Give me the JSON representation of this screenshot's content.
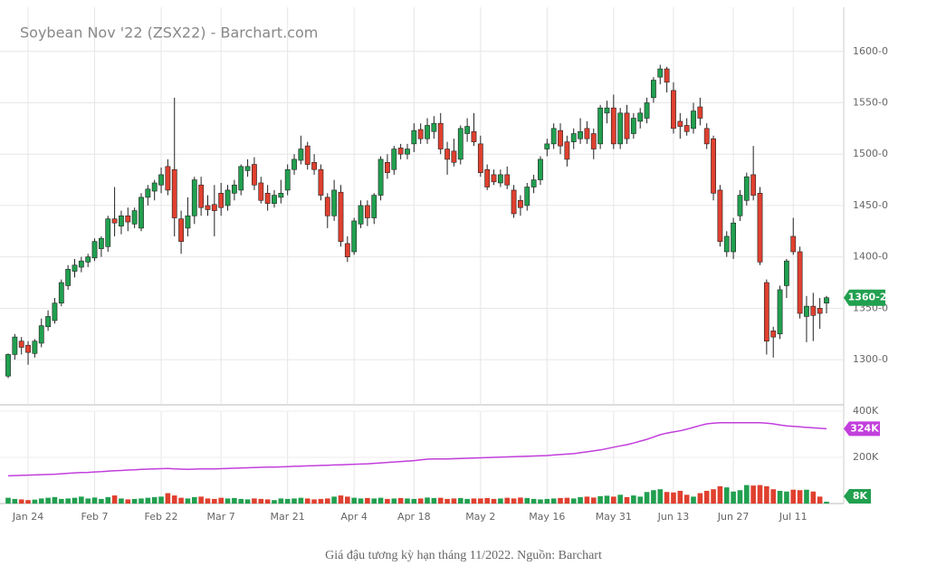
{
  "caption": "Giá đậu tương kỳ hạn tháng 11/2022. Nguồn: Barchart",
  "chart_data": [
    {
      "type": "candlestick",
      "title": "Soybean Nov '22 (ZSX22) - Barchart.com",
      "categories": [
        null,
        null,
        null,
        "Jan 24",
        null,
        null,
        null,
        null,
        null,
        null,
        null,
        null,
        null,
        "Feb 7",
        null,
        null,
        null,
        null,
        null,
        null,
        null,
        null,
        null,
        "Feb 22",
        null,
        null,
        null,
        null,
        null,
        null,
        null,
        null,
        "Mar 7",
        null,
        null,
        null,
        null,
        null,
        null,
        null,
        null,
        null,
        "Mar 21",
        null,
        null,
        null,
        null,
        null,
        null,
        null,
        null,
        null,
        "Apr 4",
        null,
        null,
        null,
        null,
        null,
        null,
        null,
        null,
        "Apr 18",
        null,
        null,
        null,
        null,
        null,
        null,
        null,
        null,
        null,
        "May 2",
        null,
        null,
        null,
        null,
        null,
        null,
        null,
        null,
        null,
        "May 16",
        null,
        null,
        null,
        null,
        null,
        null,
        null,
        null,
        null,
        "May 31",
        null,
        null,
        null,
        null,
        null,
        null,
        null,
        null,
        "Jun 13",
        null,
        null,
        null,
        null,
        null,
        null,
        null,
        null,
        "Jun 27",
        null,
        null,
        null,
        null,
        null,
        null,
        null,
        null,
        "Jul 11",
        null,
        null,
        null,
        null,
        null
      ],
      "ohlc": [
        [
          1284,
          1306,
          1282,
          1305
        ],
        [
          1305,
          1325,
          1300,
          1322
        ],
        [
          1318,
          1322,
          1305,
          1312
        ],
        [
          1314,
          1318,
          1295,
          1307
        ],
        [
          1306,
          1320,
          1302,
          1318
        ],
        [
          1316,
          1340,
          1312,
          1333
        ],
        [
          1332,
          1348,
          1328,
          1342
        ],
        [
          1338,
          1360,
          1335,
          1355
        ],
        [
          1355,
          1378,
          1352,
          1375
        ],
        [
          1372,
          1392,
          1368,
          1388
        ],
        [
          1386,
          1398,
          1380,
          1392
        ],
        [
          1390,
          1400,
          1385,
          1396
        ],
        [
          1395,
          1403,
          1390,
          1400
        ],
        [
          1399,
          1418,
          1396,
          1415
        ],
        [
          1408,
          1420,
          1400,
          1418
        ],
        [
          1410,
          1440,
          1405,
          1437
        ],
        [
          1437,
          1468,
          1420,
          1433
        ],
        [
          1430,
          1445,
          1422,
          1440
        ],
        [
          1440,
          1448,
          1425,
          1434
        ],
        [
          1432,
          1448,
          1428,
          1445
        ],
        [
          1428,
          1462,
          1425,
          1458
        ],
        [
          1458,
          1470,
          1450,
          1466
        ],
        [
          1464,
          1475,
          1455,
          1472
        ],
        [
          1470,
          1487,
          1462,
          1480
        ],
        [
          1488,
          1495,
          1460,
          1465
        ],
        [
          1485,
          1555,
          1420,
          1438
        ],
        [
          1437,
          1445,
          1403,
          1415
        ],
        [
          1428,
          1458,
          1420,
          1440
        ],
        [
          1440,
          1478,
          1432,
          1475
        ],
        [
          1470,
          1478,
          1440,
          1448
        ],
        [
          1450,
          1460,
          1440,
          1446
        ],
        [
          1451,
          1470,
          1420,
          1445
        ],
        [
          1462,
          1472,
          1440,
          1448
        ],
        [
          1450,
          1470,
          1445,
          1465
        ],
        [
          1462,
          1475,
          1455,
          1470
        ],
        [
          1465,
          1490,
          1460,
          1488
        ],
        [
          1484,
          1495,
          1478,
          1488
        ],
        [
          1490,
          1497,
          1465,
          1470
        ],
        [
          1472,
          1478,
          1452,
          1455
        ],
        [
          1462,
          1470,
          1445,
          1452
        ],
        [
          1452,
          1465,
          1448,
          1460
        ],
        [
          1458,
          1475,
          1452,
          1462
        ],
        [
          1465,
          1490,
          1460,
          1485
        ],
        [
          1485,
          1500,
          1480,
          1495
        ],
        [
          1494,
          1518,
          1490,
          1505
        ],
        [
          1508,
          1512,
          1485,
          1490
        ],
        [
          1492,
          1500,
          1480,
          1485
        ],
        [
          1485,
          1490,
          1455,
          1460
        ],
        [
          1458,
          1462,
          1428,
          1440
        ],
        [
          1440,
          1475,
          1435,
          1465
        ],
        [
          1463,
          1470,
          1410,
          1415
        ],
        [
          1413,
          1420,
          1395,
          1400
        ],
        [
          1405,
          1438,
          1402,
          1435
        ],
        [
          1432,
          1455,
          1428,
          1450
        ],
        [
          1450,
          1455,
          1430,
          1438
        ],
        [
          1438,
          1462,
          1432,
          1460
        ],
        [
          1460,
          1498,
          1455,
          1495
        ],
        [
          1492,
          1500,
          1476,
          1482
        ],
        [
          1485,
          1508,
          1480,
          1505
        ],
        [
          1506,
          1510,
          1495,
          1500
        ],
        [
          1500,
          1510,
          1495,
          1505
        ],
        [
          1510,
          1530,
          1502,
          1523
        ],
        [
          1524,
          1530,
          1510,
          1515
        ],
        [
          1515,
          1535,
          1510,
          1528
        ],
        [
          1522,
          1537,
          1515,
          1530
        ],
        [
          1530,
          1540,
          1500,
          1505
        ],
        [
          1505,
          1512,
          1480,
          1495
        ],
        [
          1503,
          1515,
          1488,
          1492
        ],
        [
          1495,
          1528,
          1490,
          1525
        ],
        [
          1520,
          1535,
          1512,
          1527
        ],
        [
          1522,
          1540,
          1508,
          1512
        ],
        [
          1510,
          1518,
          1478,
          1482
        ],
        [
          1485,
          1490,
          1465,
          1468
        ],
        [
          1480,
          1485,
          1470,
          1473
        ],
        [
          1472,
          1485,
          1468,
          1480
        ],
        [
          1480,
          1488,
          1466,
          1470
        ],
        [
          1465,
          1470,
          1438,
          1442
        ],
        [
          1455,
          1460,
          1440,
          1448
        ],
        [
          1450,
          1472,
          1445,
          1468
        ],
        [
          1468,
          1480,
          1462,
          1475
        ],
        [
          1475,
          1498,
          1470,
          1495
        ],
        [
          1505,
          1515,
          1498,
          1510
        ],
        [
          1510,
          1530,
          1505,
          1525
        ],
        [
          1523,
          1530,
          1500,
          1508
        ],
        [
          1512,
          1518,
          1488,
          1495
        ],
        [
          1512,
          1525,
          1505,
          1520
        ],
        [
          1515,
          1535,
          1510,
          1522
        ],
        [
          1525,
          1532,
          1510,
          1515
        ],
        [
          1520,
          1525,
          1495,
          1505
        ],
        [
          1510,
          1548,
          1505,
          1545
        ],
        [
          1540,
          1552,
          1530,
          1545
        ],
        [
          1545,
          1558,
          1505,
          1510
        ],
        [
          1510,
          1545,
          1505,
          1540
        ],
        [
          1540,
          1548,
          1510,
          1515
        ],
        [
          1520,
          1540,
          1515,
          1535
        ],
        [
          1532,
          1545,
          1525,
          1540
        ],
        [
          1535,
          1555,
          1530,
          1550
        ],
        [
          1555,
          1575,
          1550,
          1572
        ],
        [
          1575,
          1587,
          1568,
          1583
        ],
        [
          1583,
          1585,
          1560,
          1570
        ],
        [
          1562,
          1570,
          1520,
          1525
        ],
        [
          1532,
          1540,
          1515,
          1527
        ],
        [
          1528,
          1535,
          1518,
          1522
        ],
        [
          1525,
          1550,
          1520,
          1542
        ],
        [
          1546,
          1555,
          1528,
          1535
        ],
        [
          1525,
          1530,
          1505,
          1510
        ],
        [
          1515,
          1518,
          1455,
          1462
        ],
        [
          1465,
          1470,
          1410,
          1415
        ],
        [
          1405,
          1425,
          1400,
          1420
        ],
        [
          1405,
          1438,
          1398,
          1433
        ],
        [
          1440,
          1465,
          1435,
          1460
        ],
        [
          1455,
          1482,
          1450,
          1478
        ],
        [
          1480,
          1508,
          1455,
          1460
        ],
        [
          1462,
          1468,
          1392,
          1395
        ],
        [
          1375,
          1378,
          1305,
          1318
        ],
        [
          1328,
          1332,
          1302,
          1322
        ],
        [
          1325,
          1372,
          1320,
          1368
        ],
        [
          1372,
          1398,
          1360,
          1396
        ],
        [
          1420,
          1438,
          1402,
          1405
        ],
        [
          1405,
          1410,
          1340,
          1345
        ],
        [
          1342,
          1362,
          1317,
          1352
        ],
        [
          1352,
          1365,
          1318,
          1343
        ],
        [
          1350,
          1360,
          1330,
          1345
        ],
        [
          1355,
          1362,
          1345,
          1360.25
        ]
      ],
      "up_color": "#21a04f",
      "down_color": "#e0402f",
      "ylim": [
        1256,
        1643
      ],
      "yticks": [
        {
          "value": 1300,
          "label": "1300-0"
        },
        {
          "value": 1350,
          "label": "1350-0"
        },
        {
          "value": 1400,
          "label": "1400-0"
        },
        {
          "value": 1450,
          "label": "1450-0"
        },
        {
          "value": 1500,
          "label": "1500-0"
        },
        {
          "value": 1550,
          "label": "1550-0"
        },
        {
          "value": 1600,
          "label": "1600-0"
        }
      ],
      "grid": true,
      "last_label": "1360-2"
    },
    {
      "type": "bar",
      "values": [
        25000,
        20000,
        18000,
        15000,
        17000,
        22000,
        25000,
        28000,
        20000,
        22000,
        25000,
        30000,
        22000,
        26000,
        20000,
        28000,
        35000,
        22000,
        18000,
        20000,
        22000,
        25000,
        28000,
        30000,
        45000,
        35000,
        25000,
        22000,
        28000,
        30000,
        22000,
        20000,
        25000,
        22000,
        24000,
        20000,
        18000,
        22000,
        20000,
        18000,
        15000,
        22000,
        20000,
        22000,
        25000,
        22000,
        18000,
        20000,
        22000,
        30000,
        35000,
        30000,
        25000,
        22000,
        24000,
        22000,
        25000,
        20000,
        22000,
        24000,
        22000,
        20000,
        22000,
        26000,
        24000,
        25000,
        20000,
        22000,
        24000,
        20000,
        22000,
        22000,
        24000,
        20000,
        22000,
        25000,
        22000,
        26000,
        24000,
        20000,
        18000,
        20000,
        22000,
        24000,
        25000,
        22000,
        28000,
        30000,
        26000,
        32000,
        34000,
        30000,
        38000,
        28000,
        35000,
        30000,
        50000,
        58000,
        62000,
        50000,
        48000,
        55000,
        38000,
        30000,
        45000,
        55000,
        62000,
        75000,
        70000,
        52000,
        58000,
        80000,
        78000,
        80000,
        75000,
        62000,
        55000,
        52000,
        60000,
        58000,
        60000,
        52000,
        30000,
        8000
      ],
      "line_values": [
        120000,
        121000,
        122000,
        123000,
        124000,
        125000,
        126000,
        127000,
        129000,
        131000,
        133000,
        134000,
        135000,
        137000,
        138000,
        140000,
        142000,
        143000,
        145000,
        146000,
        148000,
        149000,
        150000,
        151000,
        152000,
        150000,
        149000,
        148000,
        149000,
        150000,
        150000,
        150000,
        151000,
        152000,
        153000,
        154000,
        155000,
        156000,
        157000,
        158000,
        158000,
        159000,
        160000,
        161000,
        162000,
        163000,
        164000,
        165000,
        166000,
        167000,
        168000,
        169000,
        170000,
        171000,
        172000,
        174000,
        176000,
        178000,
        180000,
        182000,
        184000,
        186000,
        189000,
        192000,
        193000,
        193000,
        193000,
        194000,
        195000,
        196000,
        197000,
        198000,
        199000,
        200000,
        201000,
        202000,
        203000,
        204000,
        205000,
        206000,
        207000,
        208000,
        210000,
        212000,
        214000,
        216000,
        220000,
        224000,
        228000,
        232000,
        238000,
        244000,
        250000,
        255000,
        262000,
        270000,
        278000,
        288000,
        298000,
        305000,
        310000,
        315000,
        322000,
        330000,
        338000,
        345000,
        348000,
        350000,
        350000,
        350000,
        350000,
        350000,
        350000,
        350000,
        348000,
        345000,
        340000,
        336000,
        334000,
        332000,
        330000,
        328000,
        326000,
        324000
      ],
      "line_color": "#c23fdc",
      "ylim": [
        0,
        400000
      ],
      "yticks": [
        {
          "value": 200000,
          "label": "200K"
        },
        {
          "value": 400000,
          "label": "400K"
        }
      ],
      "last_label": "8K",
      "line_last_label": "324K"
    }
  ]
}
